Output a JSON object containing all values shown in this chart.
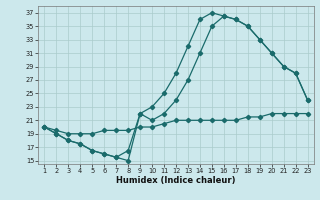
{
  "xlabel": "Humidex (Indice chaleur)",
  "bg_color": "#cce8ec",
  "grid_color": "#aacccc",
  "line_color": "#1a6b6b",
  "line1_x": [
    1,
    2,
    3,
    4,
    5,
    6,
    7,
    8,
    9,
    10,
    11,
    12,
    13,
    14,
    15,
    16,
    17,
    18,
    19,
    20,
    21,
    22,
    23
  ],
  "line1_y": [
    20,
    19.5,
    19,
    19,
    19,
    19.5,
    19.5,
    19.5,
    20,
    20,
    20.5,
    21,
    21,
    21,
    21,
    21,
    21,
    21.5,
    21.5,
    22,
    22,
    22,
    22
  ],
  "line2_x": [
    1,
    2,
    3,
    4,
    5,
    6,
    7,
    8,
    9,
    10,
    11,
    12,
    13,
    14,
    15,
    16,
    17,
    18,
    19,
    20,
    21,
    22,
    23
  ],
  "line2_y": [
    20,
    19,
    18,
    17.5,
    16.5,
    16,
    15.5,
    16.5,
    22,
    23,
    25,
    28,
    32,
    36,
    37,
    36.5,
    36,
    35,
    33,
    31,
    29,
    28,
    24
  ],
  "line3_x": [
    1,
    2,
    3,
    4,
    5,
    6,
    7,
    8,
    9,
    10,
    11,
    12,
    13,
    14,
    15,
    16,
    17,
    18,
    19,
    20,
    21,
    22,
    23
  ],
  "line3_y": [
    20,
    19,
    18,
    17.5,
    16.5,
    16,
    15.5,
    15,
    22,
    21,
    22,
    24,
    27,
    31,
    35,
    36.5,
    36,
    35,
    33,
    31,
    29,
    28,
    24
  ],
  "yticks": [
    15,
    17,
    19,
    21,
    23,
    25,
    27,
    29,
    31,
    33,
    35,
    37
  ],
  "xticks": [
    1,
    2,
    3,
    4,
    5,
    6,
    7,
    8,
    9,
    10,
    11,
    12,
    13,
    14,
    15,
    16,
    17,
    18,
    19,
    20,
    21,
    22,
    23
  ],
  "ylim": [
    14.5,
    38
  ],
  "xlim": [
    0.5,
    23.5
  ]
}
